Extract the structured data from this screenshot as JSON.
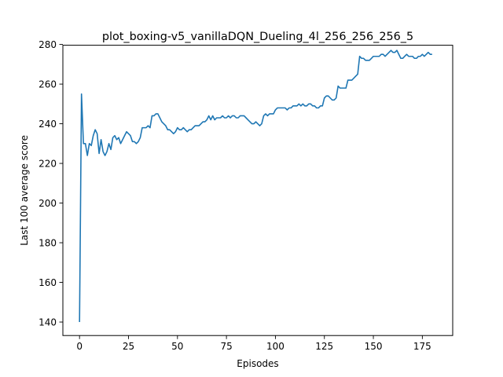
{
  "chart_data": {
    "type": "line",
    "title": "plot_boxing-v5_vanillaDQN_Dueling_4l_256_256_256_5",
    "xlabel": "Episodes",
    "ylabel": "Last 100 average score",
    "xlim": [
      -8.5,
      190.5
    ],
    "ylim": [
      133.2,
      279.6
    ],
    "xticks": [
      0,
      25,
      50,
      75,
      100,
      125,
      150,
      175
    ],
    "yticks": [
      140,
      160,
      180,
      200,
      220,
      240,
      260,
      280
    ],
    "grid": false,
    "line_color": "#1f77b4",
    "series": [
      {
        "x": [
          0,
          1,
          2,
          3,
          4,
          5,
          6,
          7,
          8,
          9,
          10,
          11,
          12,
          13,
          14,
          15,
          16,
          17,
          18,
          19,
          20,
          21,
          22,
          23,
          24,
          25,
          26,
          27,
          28,
          29,
          30,
          31,
          32,
          33,
          34,
          35,
          36,
          37,
          38,
          39,
          40,
          41,
          42,
          43,
          44,
          45,
          46,
          47,
          48,
          49,
          50,
          51,
          52,
          53,
          54,
          55,
          56,
          57,
          58,
          59,
          60,
          61,
          62,
          63,
          64,
          65,
          66,
          67,
          68,
          69,
          70,
          71,
          72,
          73,
          74,
          75,
          76,
          77,
          78,
          79,
          80,
          81,
          82,
          83,
          84,
          85,
          86,
          87,
          88,
          89,
          90,
          91,
          92,
          93,
          94,
          95,
          96,
          97,
          98,
          99,
          100,
          101,
          102,
          103,
          104,
          105,
          106,
          107,
          108,
          109,
          110,
          111,
          112,
          113,
          114,
          115,
          116,
          117,
          118,
          119,
          120,
          121,
          122,
          123,
          124,
          125,
          126,
          127,
          128,
          129,
          130,
          131,
          132,
          133,
          134,
          135,
          136,
          137,
          138,
          139,
          140,
          141,
          142,
          143,
          144,
          145,
          146,
          147,
          148,
          149,
          150,
          151,
          152,
          153,
          154,
          155,
          156,
          157,
          158,
          159,
          160,
          161,
          162,
          163,
          164,
          165,
          166,
          167,
          168,
          169,
          170,
          171,
          172,
          173,
          174,
          175,
          176,
          177,
          178,
          179,
          180
        ],
        "y": [
          140,
          255,
          230,
          230,
          224,
          230,
          229,
          234,
          237,
          235,
          225,
          232,
          226,
          224,
          226,
          230,
          227,
          233,
          234,
          232,
          233,
          230,
          232,
          234,
          236,
          235,
          234,
          231,
          231,
          230,
          231,
          233,
          238,
          238,
          238,
          239,
          238,
          244,
          244,
          245,
          245,
          243,
          241,
          240,
          239,
          237,
          237,
          236,
          235,
          236,
          238,
          237,
          237,
          238,
          237,
          236,
          237,
          237,
          238,
          239,
          239,
          239,
          240,
          241,
          241,
          242,
          244,
          242,
          244,
          242,
          243,
          243,
          243,
          244,
          243,
          243,
          244,
          243,
          244,
          244,
          243,
          243,
          244,
          244,
          244,
          243,
          242,
          241,
          240,
          240,
          241,
          240,
          239,
          240,
          244,
          245,
          244,
          245,
          245,
          245,
          247,
          248,
          248,
          248,
          248,
          248,
          247,
          248,
          248,
          249,
          249,
          249,
          250,
          249,
          250,
          249,
          249,
          250,
          250,
          249,
          249,
          248,
          248,
          249,
          249,
          253,
          254,
          254,
          253,
          252,
          252,
          253,
          259,
          258,
          258,
          258,
          258,
          262,
          262,
          262,
          263,
          264,
          265,
          274,
          273,
          273,
          272,
          272,
          272,
          273,
          274,
          274,
          274,
          274,
          275,
          275,
          274,
          275,
          276,
          277,
          276,
          276,
          277,
          275,
          273,
          273,
          274,
          275,
          274,
          274,
          274,
          273,
          273,
          274,
          274,
          275,
          274,
          275,
          276,
          275,
          275
        ]
      }
    ]
  }
}
